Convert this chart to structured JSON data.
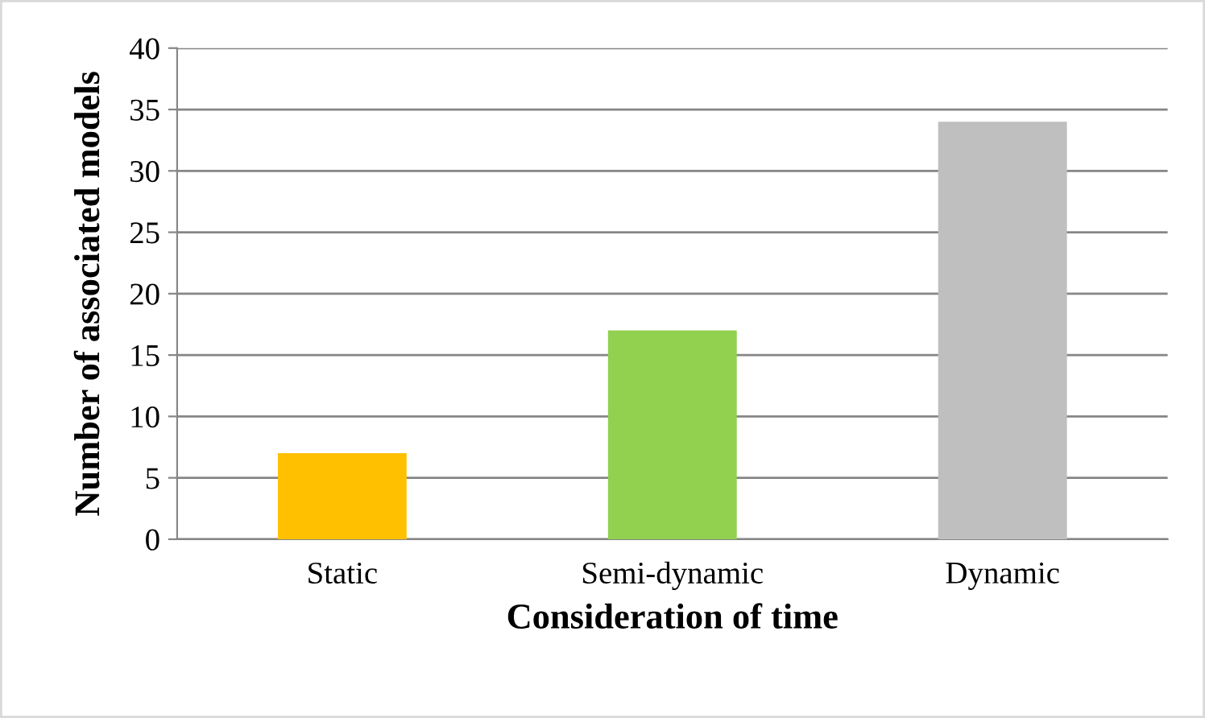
{
  "chart_data": {
    "type": "bar",
    "xlabel": "Consideration of time",
    "ylabel": "Number of associated models",
    "categories": [
      "Static",
      "Semi-dynamic",
      "Dynamic"
    ],
    "values": [
      7,
      17,
      34
    ],
    "colors": [
      "#ffc000",
      "#92d050",
      "#bfbfbf"
    ],
    "ylim": [
      0,
      40
    ],
    "yticks": [
      0,
      5,
      10,
      15,
      20,
      25,
      30,
      35,
      40
    ],
    "grid": "y",
    "legend": false
  }
}
